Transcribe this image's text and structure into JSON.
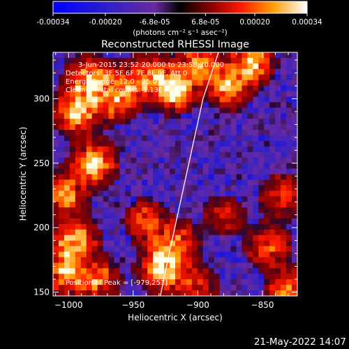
{
  "colorbar": {
    "ticks": [
      "-0.00034",
      "-0.00020",
      "-6.8e-05",
      "6.8e-05",
      "0.00020",
      "0.00034"
    ],
    "unit_label": "(photons cm⁻² s⁻¹ asec⁻²)",
    "range": [
      -0.00034,
      0.00034
    ]
  },
  "chart_data": {
    "type": "heatmap",
    "title": "Reconstructed RHESSI Image",
    "xlabel": "Heliocentric X (arcsec)",
    "ylabel": "Heliocentric Y (arcsec)",
    "xlim": [
      -1012,
      -823
    ],
    "ylim": [
      147,
      336
    ],
    "x_ticks": [
      -1000,
      -950,
      -900,
      -850
    ],
    "y_ticks": [
      150,
      200,
      250,
      300
    ],
    "annotations": [
      "3-Jun-2015 23:52:20.000 to 23:58:20.000",
      "Detectors: 3F 5F 6F 7F 8F 9F, Att 0",
      "Energy Range: 12.0 - 25.0 keV",
      "Clean     Total counts: 1.13E+04"
    ],
    "peak_label": "Position of Peak = [-979,251]",
    "peak": [
      -979,
      251
    ],
    "limb": [
      [
        -929,
        147
      ],
      [
        -920,
        190
      ],
      [
        -908,
        245
      ],
      [
        -896,
        300
      ],
      [
        -884,
        336
      ]
    ],
    "hotspots": [
      {
        "x": -983,
        "y": 315,
        "a": 1.0
      },
      {
        "x": -963,
        "y": 300,
        "a": 0.9
      },
      {
        "x": -940,
        "y": 318,
        "a": 0.8
      },
      {
        "x": -918,
        "y": 307,
        "a": 1.0
      },
      {
        "x": -995,
        "y": 290,
        "a": 0.9
      },
      {
        "x": -980,
        "y": 250,
        "a": 1.0
      },
      {
        "x": -1003,
        "y": 225,
        "a": 0.8
      },
      {
        "x": -995,
        "y": 190,
        "a": 0.9
      },
      {
        "x": -1003,
        "y": 165,
        "a": 0.9
      },
      {
        "x": -978,
        "y": 160,
        "a": 0.7
      },
      {
        "x": -928,
        "y": 168,
        "a": 1.0
      },
      {
        "x": -918,
        "y": 187,
        "a": 0.8
      },
      {
        "x": -940,
        "y": 205,
        "a": 0.6
      },
      {
        "x": -875,
        "y": 310,
        "a": 0.9
      },
      {
        "x": -858,
        "y": 328,
        "a": 0.8
      },
      {
        "x": -900,
        "y": 328,
        "a": 0.8
      },
      {
        "x": -845,
        "y": 185,
        "a": 0.7
      },
      {
        "x": -830,
        "y": 150,
        "a": 0.8
      },
      {
        "x": -835,
        "y": 225,
        "a": 0.6
      },
      {
        "x": -880,
        "y": 210,
        "a": 0.45
      },
      {
        "x": -900,
        "y": 155,
        "a": 0.5
      }
    ]
  },
  "footer_date": "21-May-2022 14:07"
}
